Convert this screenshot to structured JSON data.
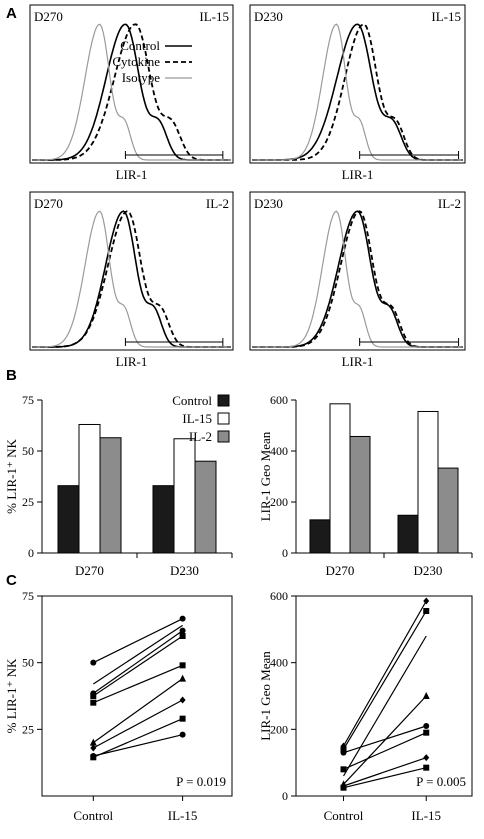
{
  "panel_labels": [
    "A",
    "B",
    "C"
  ],
  "chart_data": [
    {
      "type": "line",
      "panel": "A",
      "donor": "D270",
      "cytokine": "IL-15",
      "xlabel": "LIR-1",
      "legend": {
        "position": "top-right",
        "entries": [
          "Control",
          "Cytokine",
          "Isotype"
        ]
      },
      "series": [
        {
          "name": "Control",
          "peak_x": 0.47,
          "width": 0.12
        },
        {
          "name": "Cytokine",
          "peak_x": 0.52,
          "width": 0.13
        },
        {
          "name": "Isotype",
          "peak_x": 0.34,
          "width": 0.09
        }
      ],
      "gate": [
        0.47,
        0.95
      ]
    },
    {
      "type": "line",
      "panel": "A",
      "donor": "D230",
      "cytokine": "IL-15",
      "xlabel": "LIR-1",
      "series": [
        {
          "name": "Control",
          "peak_x": 0.5,
          "width": 0.12
        },
        {
          "name": "Cytokine",
          "peak_x": 0.53,
          "width": 0.11
        },
        {
          "name": "Isotype",
          "peak_x": 0.4,
          "width": 0.08
        }
      ],
      "gate": [
        0.51,
        0.97
      ]
    },
    {
      "type": "line",
      "panel": "A",
      "donor": "D270",
      "cytokine": "IL-2",
      "xlabel": "LIR-1",
      "series": [
        {
          "name": "Control",
          "peak_x": 0.46,
          "width": 0.11
        },
        {
          "name": "Cytokine",
          "peak_x": 0.48,
          "width": 0.12
        },
        {
          "name": "Isotype",
          "peak_x": 0.34,
          "width": 0.09
        }
      ],
      "gate": [
        0.47,
        0.95
      ]
    },
    {
      "type": "line",
      "panel": "A",
      "donor": "D230",
      "cytokine": "IL-2",
      "xlabel": "LIR-1",
      "series": [
        {
          "name": "Control",
          "peak_x": 0.5,
          "width": 0.11
        },
        {
          "name": "Cytokine",
          "peak_x": 0.51,
          "width": 0.11
        },
        {
          "name": "Isotype",
          "peak_x": 0.4,
          "width": 0.08
        }
      ],
      "gate": [
        0.51,
        0.97
      ]
    },
    {
      "type": "bar",
      "panel": "B",
      "ylabel": "% LIR-1⁺ NK",
      "ylim": [
        0,
        75
      ],
      "yticks": [
        0,
        25,
        50,
        75
      ],
      "categories": [
        "D270",
        "D230"
      ],
      "legend": {
        "position": "top-right",
        "entries": [
          "Control",
          "IL-15",
          "IL-2"
        ]
      },
      "series": [
        {
          "name": "Control",
          "color": "#1a1a1a",
          "values": [
            33,
            33
          ]
        },
        {
          "name": "IL-15",
          "color": "#ffffff",
          "values": [
            63,
            56
          ]
        },
        {
          "name": "IL-2",
          "color": "#8c8c8c",
          "values": [
            56.5,
            45
          ]
        }
      ]
    },
    {
      "type": "bar",
      "panel": "B",
      "ylabel": "LIR-1 Geo Mean",
      "ylim": [
        0,
        600
      ],
      "yticks": [
        0,
        200,
        400,
        600
      ],
      "categories": [
        "D270",
        "D230"
      ],
      "series": [
        {
          "name": "Control",
          "color": "#1a1a1a",
          "values": [
            130,
            148
          ]
        },
        {
          "name": "IL-15",
          "color": "#ffffff",
          "values": [
            585,
            555
          ]
        },
        {
          "name": "IL-2",
          "color": "#8c8c8c",
          "values": [
            457,
            333
          ]
        }
      ]
    },
    {
      "type": "line",
      "panel": "C",
      "ylabel": "% LIR-1⁺ NK",
      "ylim": [
        0,
        75
      ],
      "yticks": [
        25,
        50,
        75
      ],
      "categories": [
        "Control",
        "IL-15"
      ],
      "annotation": "P = 0.019",
      "pairs": [
        {
          "marker": "circle",
          "values": [
            50,
            66.5
          ]
        },
        {
          "marker": "none",
          "values": [
            42,
            64
          ]
        },
        {
          "marker": "circle",
          "values": [
            38.5,
            62
          ]
        },
        {
          "marker": "square",
          "values": [
            37.5,
            60
          ]
        },
        {
          "marker": "square",
          "values": [
            35,
            49
          ]
        },
        {
          "marker": "triangle",
          "values": [
            20,
            44
          ]
        },
        {
          "marker": "diamond",
          "values": [
            18,
            36
          ]
        },
        {
          "marker": "square",
          "values": [
            14.5,
            29
          ]
        },
        {
          "marker": "circle",
          "values": [
            15,
            23
          ]
        }
      ]
    },
    {
      "type": "line",
      "panel": "C",
      "ylabel": "LIR-1 Geo Mean",
      "ylim": [
        0,
        600
      ],
      "yticks": [
        0,
        200,
        400,
        600
      ],
      "categories": [
        "Control",
        "IL-15"
      ],
      "annotation": "P = 0.005",
      "pairs": [
        {
          "marker": "diamond",
          "values": [
            150,
            585
          ]
        },
        {
          "marker": "square",
          "values": [
            140,
            555
          ]
        },
        {
          "marker": "none",
          "values": [
            60,
            480
          ]
        },
        {
          "marker": "triangle",
          "values": [
            35,
            300
          ]
        },
        {
          "marker": "circle",
          "values": [
            130,
            210
          ]
        },
        {
          "marker": "square",
          "values": [
            80,
            190
          ]
        },
        {
          "marker": "diamond",
          "values": [
            30,
            115
          ]
        },
        {
          "marker": "square",
          "values": [
            25,
            85
          ]
        }
      ]
    }
  ]
}
